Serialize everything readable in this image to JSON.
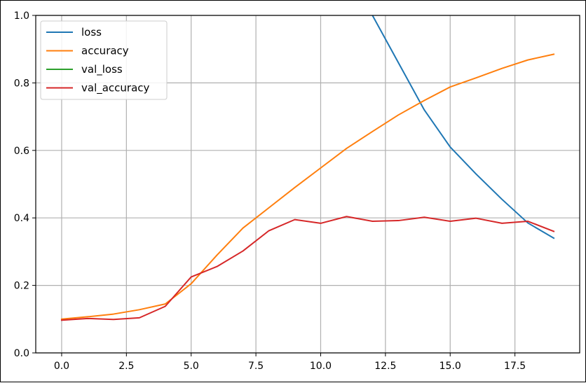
{
  "chart_data": {
    "type": "line",
    "title": "",
    "xlabel": "",
    "ylabel": "",
    "xlim": [
      -1,
      20
    ],
    "ylim": [
      0,
      1.0
    ],
    "grid": true,
    "legend_position": "top-left",
    "x_ticks": [
      "0.0",
      "2.5",
      "5.0",
      "7.5",
      "10.0",
      "12.5",
      "15.0",
      "17.5"
    ],
    "y_ticks": [
      "0.0",
      "0.2",
      "0.4",
      "0.6",
      "0.8",
      "1.0"
    ],
    "x": [
      0,
      1,
      2,
      3,
      4,
      5,
      6,
      7,
      8,
      9,
      10,
      11,
      12,
      13,
      14,
      15,
      16,
      17,
      18,
      19
    ],
    "series": [
      {
        "name": "loss",
        "color": "#1f77b4",
        "values": [
          null,
          null,
          null,
          null,
          null,
          null,
          null,
          null,
          null,
          null,
          null,
          null,
          1.0,
          0.86,
          0.72,
          0.61,
          0.53,
          0.455,
          0.385,
          0.34
        ]
      },
      {
        "name": "accuracy",
        "color": "#ff7f0e",
        "values": [
          0.1,
          0.107,
          0.115,
          0.128,
          0.145,
          0.205,
          0.29,
          0.37,
          0.43,
          0.49,
          0.548,
          0.606,
          0.656,
          0.705,
          0.748,
          0.788,
          0.815,
          0.843,
          0.868,
          0.885
        ]
      },
      {
        "name": "val_loss",
        "color": "#2ca02c",
        "values": [
          null,
          null,
          null,
          null,
          null,
          null,
          null,
          null,
          null,
          null,
          null,
          null,
          null,
          null,
          null,
          null,
          null,
          null,
          null,
          null
        ]
      },
      {
        "name": "val_accuracy",
        "color": "#d62728",
        "values": [
          0.097,
          0.102,
          0.099,
          0.104,
          0.138,
          0.225,
          0.256,
          0.302,
          0.362,
          0.395,
          0.384,
          0.404,
          0.39,
          0.392,
          0.402,
          0.39,
          0.399,
          0.384,
          0.39,
          0.36
        ]
      }
    ]
  }
}
